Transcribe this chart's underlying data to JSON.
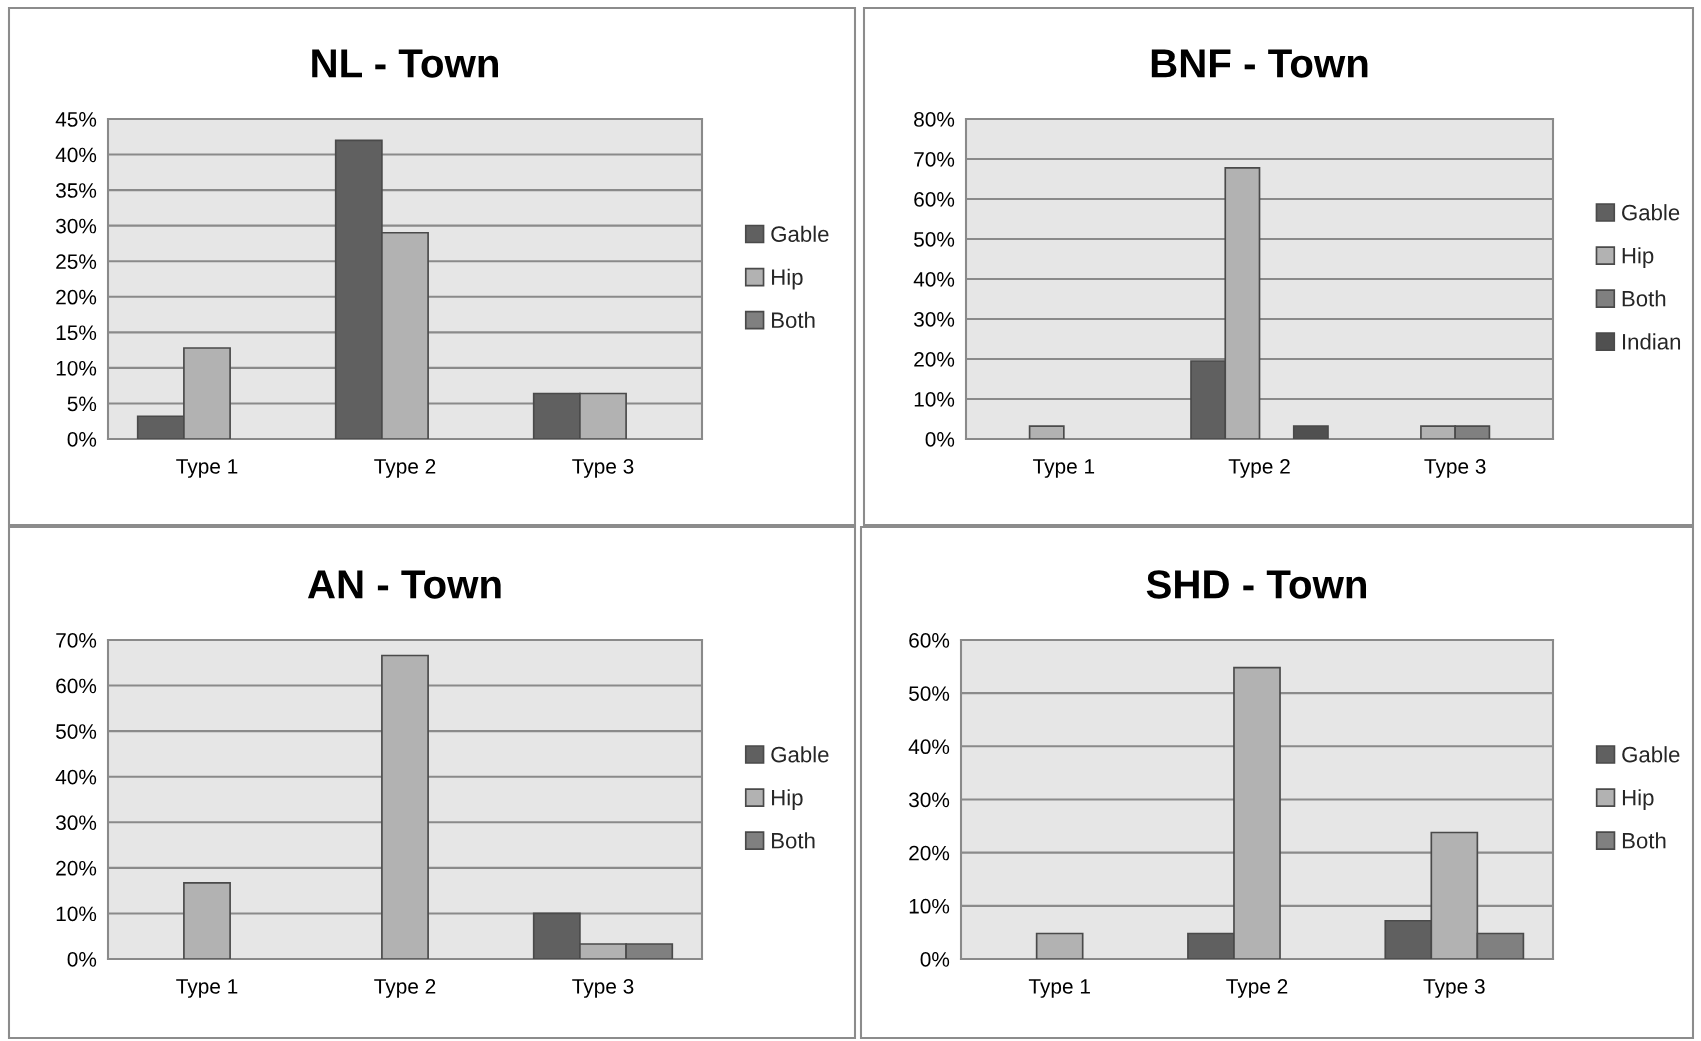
{
  "chart_data": [
    {
      "type": "bar",
      "title": "NL - Town",
      "categories": [
        "Type 1",
        "Type 2",
        "Type 3"
      ],
      "series": [
        {
          "name": "Gable",
          "color": "#606060",
          "values": [
            3.2,
            42,
            6.4
          ]
        },
        {
          "name": "Hip",
          "color": "#b2b2b2",
          "values": [
            12.8,
            29,
            6.4
          ]
        },
        {
          "name": "Both",
          "color": "#808080",
          "values": [
            null,
            null,
            null
          ]
        }
      ],
      "ylim": [
        0,
        45
      ],
      "yticks": [
        {
          "value": 0,
          "label": "0%"
        },
        {
          "value": 5,
          "label": "5%"
        },
        {
          "value": 10,
          "label": "10%"
        },
        {
          "value": 15,
          "label": "15%"
        },
        {
          "value": 20,
          "label": "20%"
        },
        {
          "value": 25,
          "label": "25%"
        },
        {
          "value": 30,
          "label": "30%"
        },
        {
          "value": 35,
          "label": "35%"
        },
        {
          "value": 40,
          "label": "40%"
        },
        {
          "value": 45,
          "label": "45%"
        }
      ],
      "grid": "y",
      "legend": "right"
    },
    {
      "type": "bar",
      "title": "BNF - Town",
      "categories": [
        "Type 1",
        "Type 2",
        "Type 3"
      ],
      "series": [
        {
          "name": "Gable",
          "color": "#606060",
          "values": [
            null,
            19.5,
            null
          ]
        },
        {
          "name": "Hip",
          "color": "#b2b2b2",
          "values": [
            3.2,
            67.8,
            3.2
          ]
        },
        {
          "name": "Both",
          "color": "#808080",
          "values": [
            null,
            null,
            3.2
          ]
        },
        {
          "name": "Indian",
          "color": "#505050",
          "values": [
            null,
            3.2,
            null
          ]
        }
      ],
      "ylim": [
        0,
        80
      ],
      "yticks": [
        {
          "value": 0,
          "label": "0%"
        },
        {
          "value": 10,
          "label": "10%"
        },
        {
          "value": 20,
          "label": "20%"
        },
        {
          "value": 30,
          "label": "30%"
        },
        {
          "value": 40,
          "label": "40%"
        },
        {
          "value": 50,
          "label": "50%"
        },
        {
          "value": 60,
          "label": "60%"
        },
        {
          "value": 70,
          "label": "70%"
        },
        {
          "value": 80,
          "label": "80%"
        }
      ],
      "grid": "y",
      "legend": "right"
    },
    {
      "type": "bar",
      "title": "AN - Town",
      "categories": [
        "Type 1",
        "Type 2",
        "Type 3"
      ],
      "series": [
        {
          "name": "Gable",
          "color": "#606060",
          "values": [
            null,
            null,
            10
          ]
        },
        {
          "name": "Hip",
          "color": "#b2b2b2",
          "values": [
            16.7,
            66.6,
            3.3
          ]
        },
        {
          "name": "Both",
          "color": "#808080",
          "values": [
            null,
            null,
            3.3
          ]
        }
      ],
      "ylim": [
        0,
        70
      ],
      "yticks": [
        {
          "value": 0,
          "label": "0%"
        },
        {
          "value": 10,
          "label": "10%"
        },
        {
          "value": 20,
          "label": "20%"
        },
        {
          "value": 30,
          "label": "30%"
        },
        {
          "value": 40,
          "label": "40%"
        },
        {
          "value": 50,
          "label": "50%"
        },
        {
          "value": 60,
          "label": "60%"
        },
        {
          "value": 70,
          "label": "70%"
        }
      ],
      "grid": "y",
      "legend": "right"
    },
    {
      "type": "bar",
      "title": "SHD - Town",
      "categories": [
        "Type 1",
        "Type 2",
        "Type 3"
      ],
      "series": [
        {
          "name": "Gable",
          "color": "#606060",
          "values": [
            null,
            4.8,
            7.2
          ]
        },
        {
          "name": "Hip",
          "color": "#b2b2b2",
          "values": [
            4.8,
            54.8,
            23.8
          ]
        },
        {
          "name": "Both",
          "color": "#808080",
          "values": [
            null,
            null,
            4.8
          ]
        }
      ],
      "ylim": [
        0,
        60
      ],
      "yticks": [
        {
          "value": 0,
          "label": "0%"
        },
        {
          "value": 10,
          "label": "10%"
        },
        {
          "value": 20,
          "label": "20%"
        },
        {
          "value": 30,
          "label": "30%"
        },
        {
          "value": 40,
          "label": "40%"
        },
        {
          "value": 50,
          "label": "50%"
        },
        {
          "value": 60,
          "label": "60%"
        }
      ],
      "grid": "y",
      "legend": "right"
    }
  ]
}
